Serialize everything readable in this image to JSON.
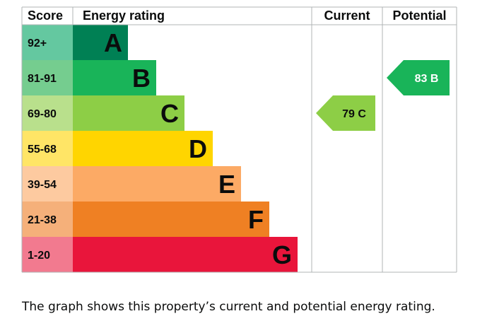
{
  "chart_data": {
    "type": "bar",
    "headers": {
      "score": "Score",
      "rating": "Energy rating",
      "current": "Current",
      "potential": "Potential"
    },
    "bands": [
      {
        "score": "92+",
        "letter": "A",
        "bar_color": "#008054",
        "score_color": "#64c8a0"
      },
      {
        "score": "81-91",
        "letter": "B",
        "bar_color": "#19b459",
        "score_color": "#75cd8f"
      },
      {
        "score": "69-80",
        "letter": "C",
        "bar_color": "#8dce46",
        "score_color": "#b9e08c"
      },
      {
        "score": "55-68",
        "letter": "D",
        "bar_color": "#ffd500",
        "score_color": "#ffe566"
      },
      {
        "score": "39-54",
        "letter": "E",
        "bar_color": "#fcaa65",
        "score_color": "#fdcaa0"
      },
      {
        "score": "21-38",
        "letter": "F",
        "bar_color": "#ef8023",
        "score_color": "#f5b07a"
      },
      {
        "score": "1-20",
        "letter": "G",
        "bar_color": "#e9153b",
        "score_color": "#f27a8f"
      }
    ],
    "current": {
      "value": 79,
      "band": "C",
      "label": "79 C",
      "color": "#8dce46"
    },
    "potential": {
      "value": 83,
      "band": "B",
      "label": "83 B",
      "color": "#19b459"
    }
  },
  "caption": "The graph shows this property’s current and potential energy rating."
}
